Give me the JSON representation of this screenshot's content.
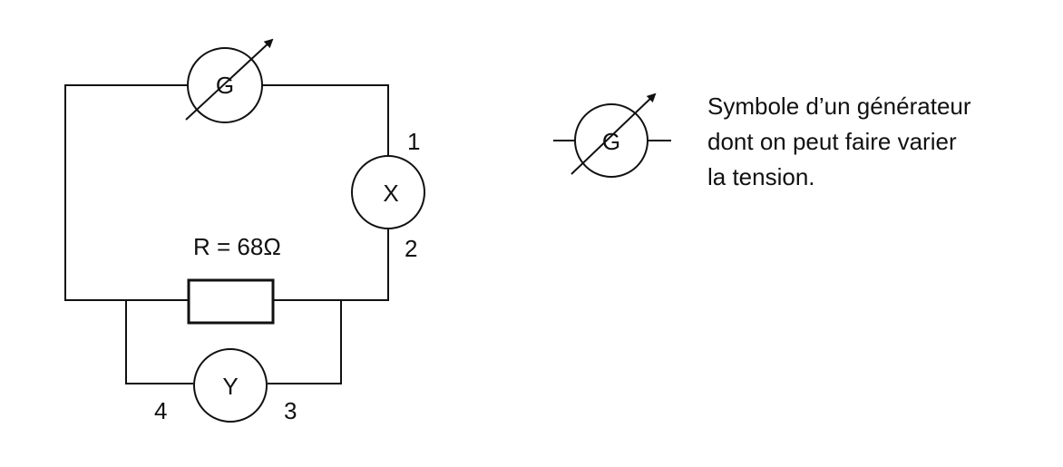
{
  "circuit": {
    "generator_label": "G",
    "component_x_label": "X",
    "component_y_label": "Y",
    "resistor_label": "R = 68Ω",
    "terminals": {
      "t1": "1",
      "t2": "2",
      "t3": "3",
      "t4": "4"
    }
  },
  "legend": {
    "symbol_label": "G",
    "description_lines": [
      "Symbole d’un générateur",
      "dont on peut faire varier",
      "la tension."
    ]
  },
  "colors": {
    "stroke": "#111111",
    "background": "#ffffff"
  }
}
